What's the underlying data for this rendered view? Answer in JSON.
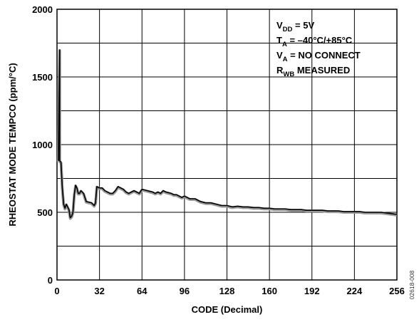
{
  "chart_data": {
    "type": "line",
    "title": "",
    "xlabel": "CODE (Decimal)",
    "ylabel": "RHEOSTAT MODE TEMPCO (ppm/°C)",
    "xlim": [
      0,
      256
    ],
    "ylim": [
      0,
      2000
    ],
    "x_ticks": [
      0,
      32,
      64,
      96,
      128,
      160,
      192,
      224,
      256
    ],
    "y_ticks": [
      0,
      500,
      1000,
      1500,
      2000
    ],
    "grid": true,
    "legend_position": "top-right",
    "annotations": [
      {
        "main": "V",
        "sub": "DD",
        "rest": " = 5V"
      },
      {
        "main": "T",
        "sub": "A",
        "rest": " = –40°C/+85°C"
      },
      {
        "main": "V",
        "sub": "A",
        "rest": " = NO CONNECT"
      },
      {
        "main": "R",
        "sub": "WB",
        "rest": " MEASURED"
      }
    ],
    "series": [
      {
        "x": [
          1,
          2,
          2,
          3,
          4,
          5,
          6,
          7,
          8,
          9,
          10,
          11,
          12,
          13,
          14,
          15,
          16,
          17,
          18,
          20,
          22,
          24,
          26,
          28,
          29,
          30,
          32,
          34,
          36,
          38,
          40,
          42,
          44,
          46,
          48,
          50,
          52,
          54,
          56,
          58,
          60,
          62,
          64,
          66,
          68,
          70,
          72,
          74,
          76,
          78,
          80,
          82,
          84,
          86,
          88,
          90,
          92,
          94,
          96,
          100,
          104,
          108,
          112,
          116,
          120,
          124,
          128,
          132,
          136,
          140,
          144,
          148,
          152,
          156,
          160,
          164,
          168,
          172,
          176,
          180,
          184,
          188,
          192,
          196,
          200,
          204,
          208,
          212,
          216,
          220,
          224,
          228,
          232,
          236,
          240,
          244,
          248,
          252,
          256
        ],
        "y": [
          880,
          1700,
          880,
          870,
          680,
          560,
          530,
          560,
          540,
          520,
          460,
          470,
          500,
          630,
          700,
          680,
          640,
          640,
          660,
          640,
          580,
          575,
          570,
          550,
          570,
          690,
          680,
          680,
          660,
          650,
          640,
          640,
          660,
          690,
          680,
          670,
          650,
          640,
          650,
          660,
          650,
          640,
          670,
          665,
          660,
          655,
          650,
          640,
          650,
          640,
          660,
          650,
          645,
          640,
          630,
          630,
          620,
          610,
          620,
          600,
          600,
          580,
          570,
          570,
          560,
          550,
          550,
          540,
          545,
          540,
          540,
          535,
          535,
          530,
          530,
          525,
          525,
          525,
          520,
          520,
          520,
          515,
          515,
          515,
          515,
          510,
          510,
          510,
          505,
          505,
          505,
          505,
          500,
          500,
          500,
          500,
          495,
          490,
          485
        ]
      }
    ],
    "line_color": "#000000",
    "shadow_color": "#999999"
  },
  "figure_id": "02618-008"
}
